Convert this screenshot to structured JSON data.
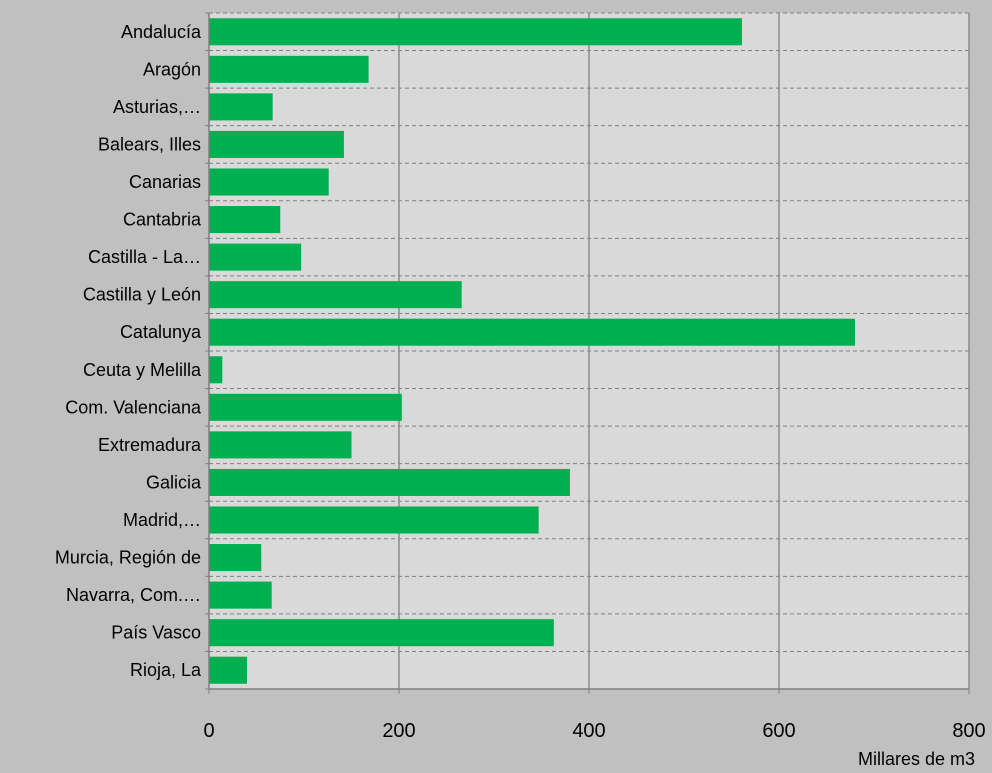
{
  "chart_data": {
    "type": "bar",
    "orientation": "horizontal",
    "categories": [
      "Andalucía",
      "Aragón",
      "Asturias,…",
      "Balears, Illes",
      "Canarias",
      "Cantabria",
      "Castilla - La…",
      "Castilla y León",
      "Catalunya",
      "Ceuta y Melilla",
      "Com. Valenciana",
      "Extremadura",
      "Galicia",
      "Madrid,…",
      "Murcia, Región de",
      "Navarra, Com.…",
      "País Vasco",
      "Rioja, La"
    ],
    "values": [
      561,
      168,
      67,
      142,
      126,
      75,
      97,
      266,
      680,
      14,
      203,
      150,
      380,
      347,
      55,
      66,
      363,
      40
    ],
    "xlim": [
      0,
      800
    ],
    "xticks": [
      0,
      200,
      400,
      600,
      800
    ],
    "xlabel": "Millares de m3",
    "title": "",
    "grid": {
      "vertical": "solid",
      "horizontal": "dashed"
    },
    "bar_color": "#00b050",
    "plot_bg": "#d9d9d9"
  }
}
